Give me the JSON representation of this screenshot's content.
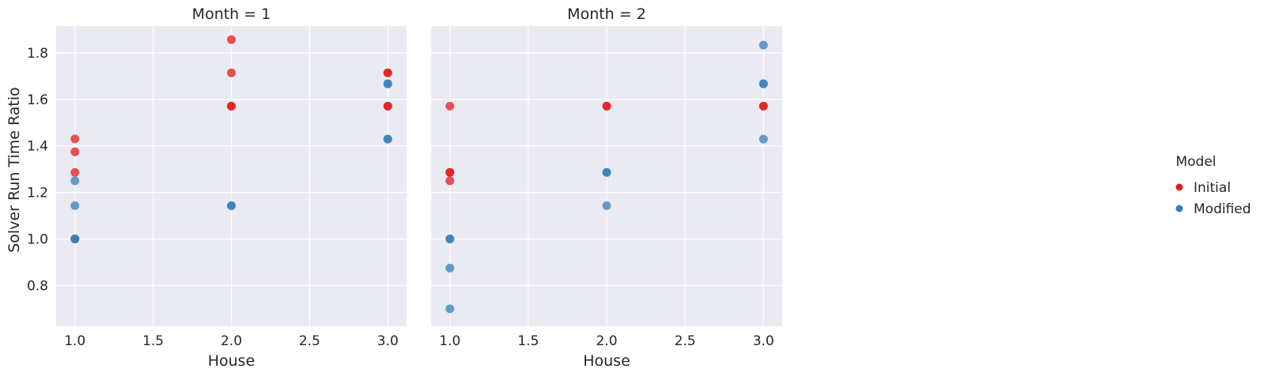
{
  "chart_data": {
    "type": "scatter",
    "xlabel": "House",
    "ylabel": "Solver Run Time Ratio",
    "xlim": [
      0.88,
      3.12
    ],
    "ylim": [
      0.625,
      1.915
    ],
    "xticks": [
      1.0,
      1.5,
      2.0,
      2.5,
      3.0
    ],
    "xtick_labels": [
      "1.0",
      "1.5",
      "2.0",
      "2.5",
      "3.0"
    ],
    "yticks": [
      0.8,
      1.0,
      1.2,
      1.4,
      1.6,
      1.8
    ],
    "ytick_labels": [
      "0.8",
      "1.0",
      "1.2",
      "1.4",
      "1.6",
      "1.8"
    ],
    "grid": true,
    "legend": {
      "title": "Model",
      "position": "right",
      "entries": [
        {
          "label": "Initial",
          "color": "#e41a1c"
        },
        {
          "label": "Modified",
          "color": "#377eb8"
        }
      ]
    },
    "panels": [
      {
        "title": "Month = 1",
        "series": [
          {
            "name": "Initial",
            "color": "#e41a1c",
            "points": [
              [
                1,
                1.43
              ],
              [
                1,
                1.375
              ],
              [
                1,
                1.286
              ],
              [
                1,
                1.0
              ],
              [
                2,
                1.857
              ],
              [
                2,
                1.714
              ],
              [
                2,
                1.571
              ],
              [
                2,
                1.571
              ],
              [
                3,
                1.714
              ],
              [
                3,
                1.714
              ],
              [
                3,
                1.571
              ],
              [
                3,
                1.571
              ]
            ]
          },
          {
            "name": "Modified",
            "color": "#377eb8",
            "points": [
              [
                1,
                1.25
              ],
              [
                1,
                1.143
              ],
              [
                1,
                1.0
              ],
              [
                1,
                1.0
              ],
              [
                2,
                1.143
              ],
              [
                2,
                1.143
              ],
              [
                3,
                1.667
              ],
              [
                3,
                1.667
              ],
              [
                3,
                1.429
              ],
              [
                3,
                1.429
              ]
            ]
          }
        ]
      },
      {
        "title": "Month = 2",
        "series": [
          {
            "name": "Initial",
            "color": "#e41a1c",
            "points": [
              [
                1,
                1.571
              ],
              [
                1,
                1.286
              ],
              [
                1,
                1.286
              ],
              [
                1,
                1.25
              ],
              [
                2,
                1.571
              ],
              [
                2,
                1.571
              ],
              [
                3,
                1.571
              ],
              [
                3,
                1.571
              ]
            ]
          },
          {
            "name": "Modified",
            "color": "#377eb8",
            "points": [
              [
                1,
                1.0
              ],
              [
                1,
                1.0
              ],
              [
                1,
                0.875
              ],
              [
                1,
                0.7
              ],
              [
                2,
                1.286
              ],
              [
                2,
                1.286
              ],
              [
                2,
                1.143
              ],
              [
                3,
                1.833
              ],
              [
                3,
                1.667
              ],
              [
                3,
                1.667
              ],
              [
                3,
                1.429
              ]
            ]
          }
        ]
      }
    ]
  }
}
